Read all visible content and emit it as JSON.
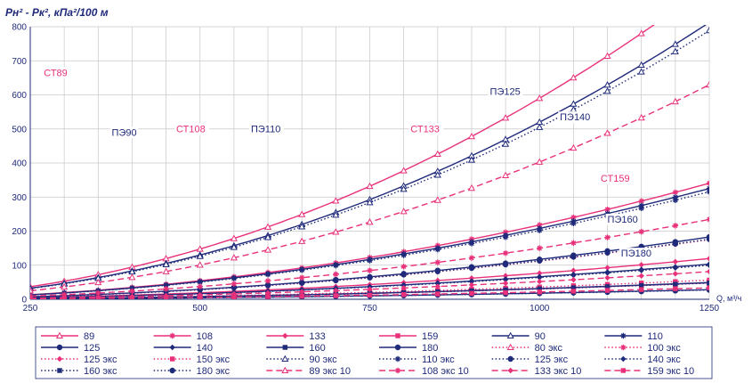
{
  "chart_data": {
    "type": "line",
    "ylabel": "Pн² - Pк², кПа²/100 м",
    "xlabel": "Q, м³/ч",
    "xlim": [
      250,
      1250
    ],
    "ylim": [
      0,
      800
    ],
    "x_ticks": [
      250,
      500,
      750,
      1000,
      1250
    ],
    "y_ticks": [
      0,
      100,
      200,
      300,
      400,
      500,
      600,
      700,
      800
    ],
    "grid": true,
    "legend_placement": "bottom",
    "colors": {
      "pink": "#e8317a",
      "navy": "#1f2a7a",
      "grid": "#c8c8c8"
    },
    "x": [
      250,
      300,
      350,
      400,
      450,
      500,
      550,
      600,
      650,
      700,
      750,
      800,
      850,
      900,
      950,
      1000,
      1050,
      1100,
      1150,
      1200,
      1250
    ],
    "series": [
      {
        "name": "89",
        "color": "pink",
        "dash": "solid",
        "marker": "triangle-open",
        "k": 5.9,
        "show": true
      },
      {
        "name": "108",
        "color": "pink",
        "dash": "solid",
        "marker": "asterisk",
        "k": 2.18,
        "show": true
      },
      {
        "name": "133",
        "color": "pink",
        "dash": "solid",
        "marker": "diamond",
        "k": 0.765,
        "show": true
      },
      {
        "name": "159",
        "color": "pink",
        "dash": "solid",
        "marker": "square",
        "k": 0.31,
        "show": true
      },
      {
        "name": "90",
        "color": "navy",
        "dash": "solid",
        "marker": "triangle-open",
        "k": 5.2,
        "show": true
      },
      {
        "name": "110",
        "color": "navy",
        "dash": "solid",
        "marker": "asterisk",
        "k": 2.08,
        "show": true
      },
      {
        "name": "125",
        "color": "navy",
        "dash": "solid",
        "marker": "circle",
        "k": 1.17,
        "show": true
      },
      {
        "name": "140",
        "color": "navy",
        "dash": "solid",
        "marker": "diamond",
        "k": 0.66,
        "show": true
      },
      {
        "name": "160",
        "color": "navy",
        "dash": "solid",
        "marker": "square",
        "k": 0.315,
        "show": true
      },
      {
        "name": "180",
        "color": "navy",
        "dash": "solid",
        "marker": "circle",
        "k": 0.18,
        "show": true
      },
      {
        "name": "80 экс",
        "color": "pink",
        "dash": "dotted",
        "marker": "triangle-open",
        "k": 0,
        "show": false
      },
      {
        "name": "100 экс",
        "color": "pink",
        "dash": "dotted",
        "marker": "asterisk",
        "k": 0,
        "show": false
      },
      {
        "name": "125 экс",
        "color": "pink",
        "dash": "dotted",
        "marker": "diamond",
        "k": 1.12,
        "show": true
      },
      {
        "name": "150 экс",
        "color": "pink",
        "dash": "dotted",
        "marker": "square",
        "k": 0.36,
        "show": true
      },
      {
        "name": "90 экс",
        "color": "navy",
        "dash": "dotted",
        "marker": "triangle-open",
        "k": 5.05,
        "show": true
      },
      {
        "name": "110 экс",
        "color": "navy",
        "dash": "dotted",
        "marker": "asterisk",
        "k": 2.02,
        "show": true
      },
      {
        "name": "125 экс",
        "color": "navy",
        "dash": "dotted",
        "marker": "circle",
        "k": 1.13,
        "show": true
      },
      {
        "name": "140 экс",
        "color": "navy",
        "dash": "dotted",
        "marker": "diamond",
        "k": 0.64,
        "show": true
      },
      {
        "name": "160 экс",
        "color": "navy",
        "dash": "dotted",
        "marker": "square",
        "k": 0.305,
        "show": true
      },
      {
        "name": "180 экс",
        "color": "navy",
        "dash": "dotted",
        "marker": "circle",
        "k": 0.175,
        "show": true
      },
      {
        "name": "89 экс 10",
        "color": "pink",
        "dash": "dashed",
        "marker": "triangle-open",
        "k": 4.03,
        "show": true
      },
      {
        "name": "108 экс 10",
        "color": "pink",
        "dash": "dashed",
        "marker": "asterisk",
        "k": 1.5,
        "show": true
      },
      {
        "name": "133 экс 10",
        "color": "pink",
        "dash": "dashed",
        "marker": "diamond",
        "k": 0.52,
        "show": true
      },
      {
        "name": "159 экс 10",
        "color": "pink",
        "dash": "dashed",
        "marker": "square",
        "k": 0.215,
        "show": true
      }
    ],
    "curve_labels": [
      {
        "text": "СТ89",
        "color": "pink",
        "x": 270,
        "y": 655
      },
      {
        "text": "ПЭ90",
        "color": "navy",
        "x": 370,
        "y": 480
      },
      {
        "text": "СТ108",
        "color": "pink",
        "x": 465,
        "y": 490
      },
      {
        "text": "ПЭ110",
        "color": "navy",
        "x": 575,
        "y": 490
      },
      {
        "text": "СТ133",
        "color": "pink",
        "x": 810,
        "y": 490
      },
      {
        "text": "ПЭ125",
        "color": "navy",
        "x": 927,
        "y": 600
      },
      {
        "text": "ПЭ140",
        "color": "navy",
        "x": 1030,
        "y": 525
      },
      {
        "text": "СТ159",
        "color": "pink",
        "x": 1090,
        "y": 345
      },
      {
        "text": "ПЭ160",
        "color": "navy",
        "x": 1100,
        "y": 225
      },
      {
        "text": "ПЭ180",
        "color": "navy",
        "x": 1120,
        "y": 125
      }
    ]
  }
}
